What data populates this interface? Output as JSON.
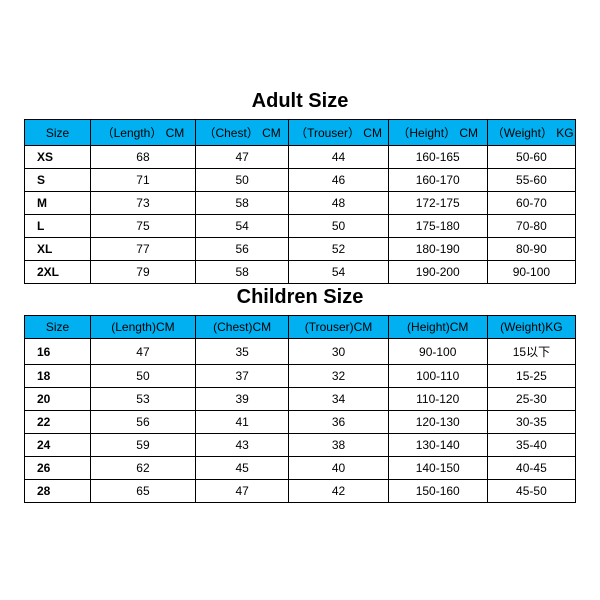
{
  "colors": {
    "header_bg": "#00b0f0",
    "border": "#000000",
    "text": "#000000",
    "page_bg": "#ffffff"
  },
  "adult": {
    "title": "Adult Size",
    "columns": [
      "Size",
      "（Length） CM",
      "（Chest） CM",
      "（Trouser） CM",
      "（Height） CM",
      "（Weight） KG"
    ],
    "rows": [
      [
        "XS",
        "68",
        "47",
        "44",
        "160-165",
        "50-60"
      ],
      [
        "S",
        "71",
        "50",
        "46",
        "160-170",
        "55-60"
      ],
      [
        "M",
        "73",
        "58",
        "48",
        "172-175",
        "60-70"
      ],
      [
        "L",
        "75",
        "54",
        "50",
        "175-180",
        "70-80"
      ],
      [
        "XL",
        "77",
        "56",
        "52",
        "180-190",
        "80-90"
      ],
      [
        "2XL",
        "79",
        "58",
        "54",
        "190-200",
        "90-100"
      ]
    ]
  },
  "children": {
    "title": "Children Size",
    "columns": [
      "Size",
      "(Length)CM",
      "(Chest)CM",
      "(Trouser)CM",
      "(Height)CM",
      "(Weight)KG"
    ],
    "rows": [
      [
        "16",
        "47",
        "35",
        "30",
        "90-100",
        "15以下"
      ],
      [
        "18",
        "50",
        "37",
        "32",
        "100-110",
        "15-25"
      ],
      [
        "20",
        "53",
        "39",
        "34",
        "110-120",
        "25-30"
      ],
      [
        "22",
        "56",
        "41",
        "36",
        "120-130",
        "30-35"
      ],
      [
        "24",
        "59",
        "43",
        "38",
        "130-140",
        "35-40"
      ],
      [
        "26",
        "62",
        "45",
        "40",
        "140-150",
        "40-45"
      ],
      [
        "28",
        "65",
        "47",
        "42",
        "150-160",
        "45-50"
      ]
    ]
  }
}
